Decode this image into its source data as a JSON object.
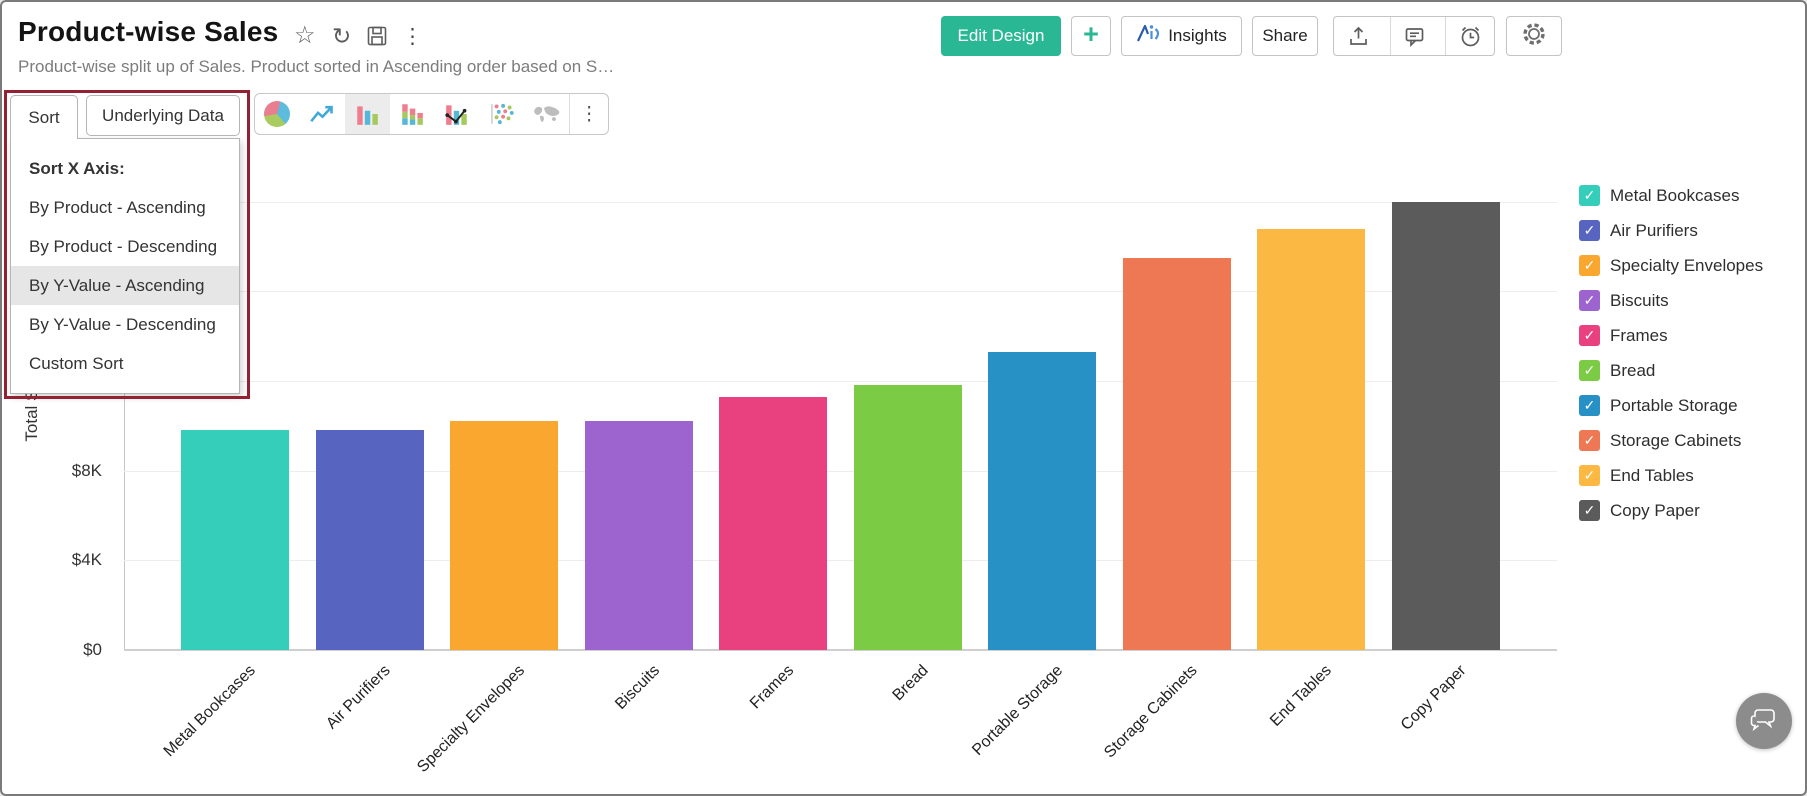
{
  "header": {
    "title": "Product-wise Sales",
    "subtitle": "Product-wise split up of Sales. Product sorted in Ascending order based on S…",
    "icons": {
      "star": "☆",
      "refresh": "↻",
      "more": "⋮"
    },
    "actions": {
      "edit_design": "Edit Design",
      "add": "+",
      "insights": "Insights",
      "share": "Share"
    }
  },
  "tabs": [
    {
      "label": "Sort"
    },
    {
      "label": "Underlying Data"
    }
  ],
  "sort_menu": {
    "header": "Sort X Axis:",
    "items": [
      {
        "label": "By Product - Ascending",
        "selected": false
      },
      {
        "label": "By Product - Descending",
        "selected": false
      },
      {
        "label": "By Y-Value - Ascending",
        "selected": true
      },
      {
        "label": "By Y-Value - Descending",
        "selected": false
      },
      {
        "label": "Custom Sort",
        "selected": false
      }
    ]
  },
  "chart_toolbar": {
    "icons": [
      {
        "name": "pie-chart-icon",
        "selected": false
      },
      {
        "name": "line-chart-icon",
        "selected": false
      },
      {
        "name": "bar-chart-icon",
        "selected": true
      },
      {
        "name": "stacked-bar-chart-icon",
        "selected": false
      },
      {
        "name": "combo-chart-icon",
        "selected": false
      },
      {
        "name": "scatter-chart-icon",
        "selected": false
      },
      {
        "name": "map-chart-icon",
        "selected": false
      }
    ],
    "more": "⋮"
  },
  "chart_data": {
    "type": "bar",
    "title": "Product-wise Sales",
    "categories": [
      "Metal Bookcases",
      "Air Purifiers",
      "Specialty Envelopes",
      "Biscuits",
      "Frames",
      "Bread",
      "Portable Storage",
      "Storage Cabinets",
      "End Tables",
      "Copy Paper"
    ],
    "values": [
      9800,
      9800,
      10200,
      10200,
      11300,
      11800,
      13300,
      17500,
      18800,
      20000
    ],
    "colors": [
      "#35ceba",
      "#5865c0",
      "#f9a72f",
      "#9d63cf",
      "#e94180",
      "#7ccb44",
      "#2791c5",
      "#ee7853",
      "#fbb943",
      "#5b5b5b"
    ],
    "xlabel": "",
    "ylabel": "Total Sales",
    "ylim": [
      0,
      22300
    ],
    "yticks": [
      {
        "value": 0,
        "label": "$0"
      },
      {
        "value": 4000,
        "label": "$4K"
      },
      {
        "value": 8000,
        "label": "$8K"
      }
    ],
    "gridlines": [
      4000,
      8000,
      12000,
      16000,
      20000
    ],
    "grid": "on",
    "legend_position": "right",
    "legend_checkmark": "✓",
    "legend_all_checked": true
  },
  "colors": {
    "accent_green": "#29b794",
    "annotation_red": "#942132",
    "insights_blue": "#2a5caa",
    "selected_menu_bg": "#e6e6e6"
  }
}
